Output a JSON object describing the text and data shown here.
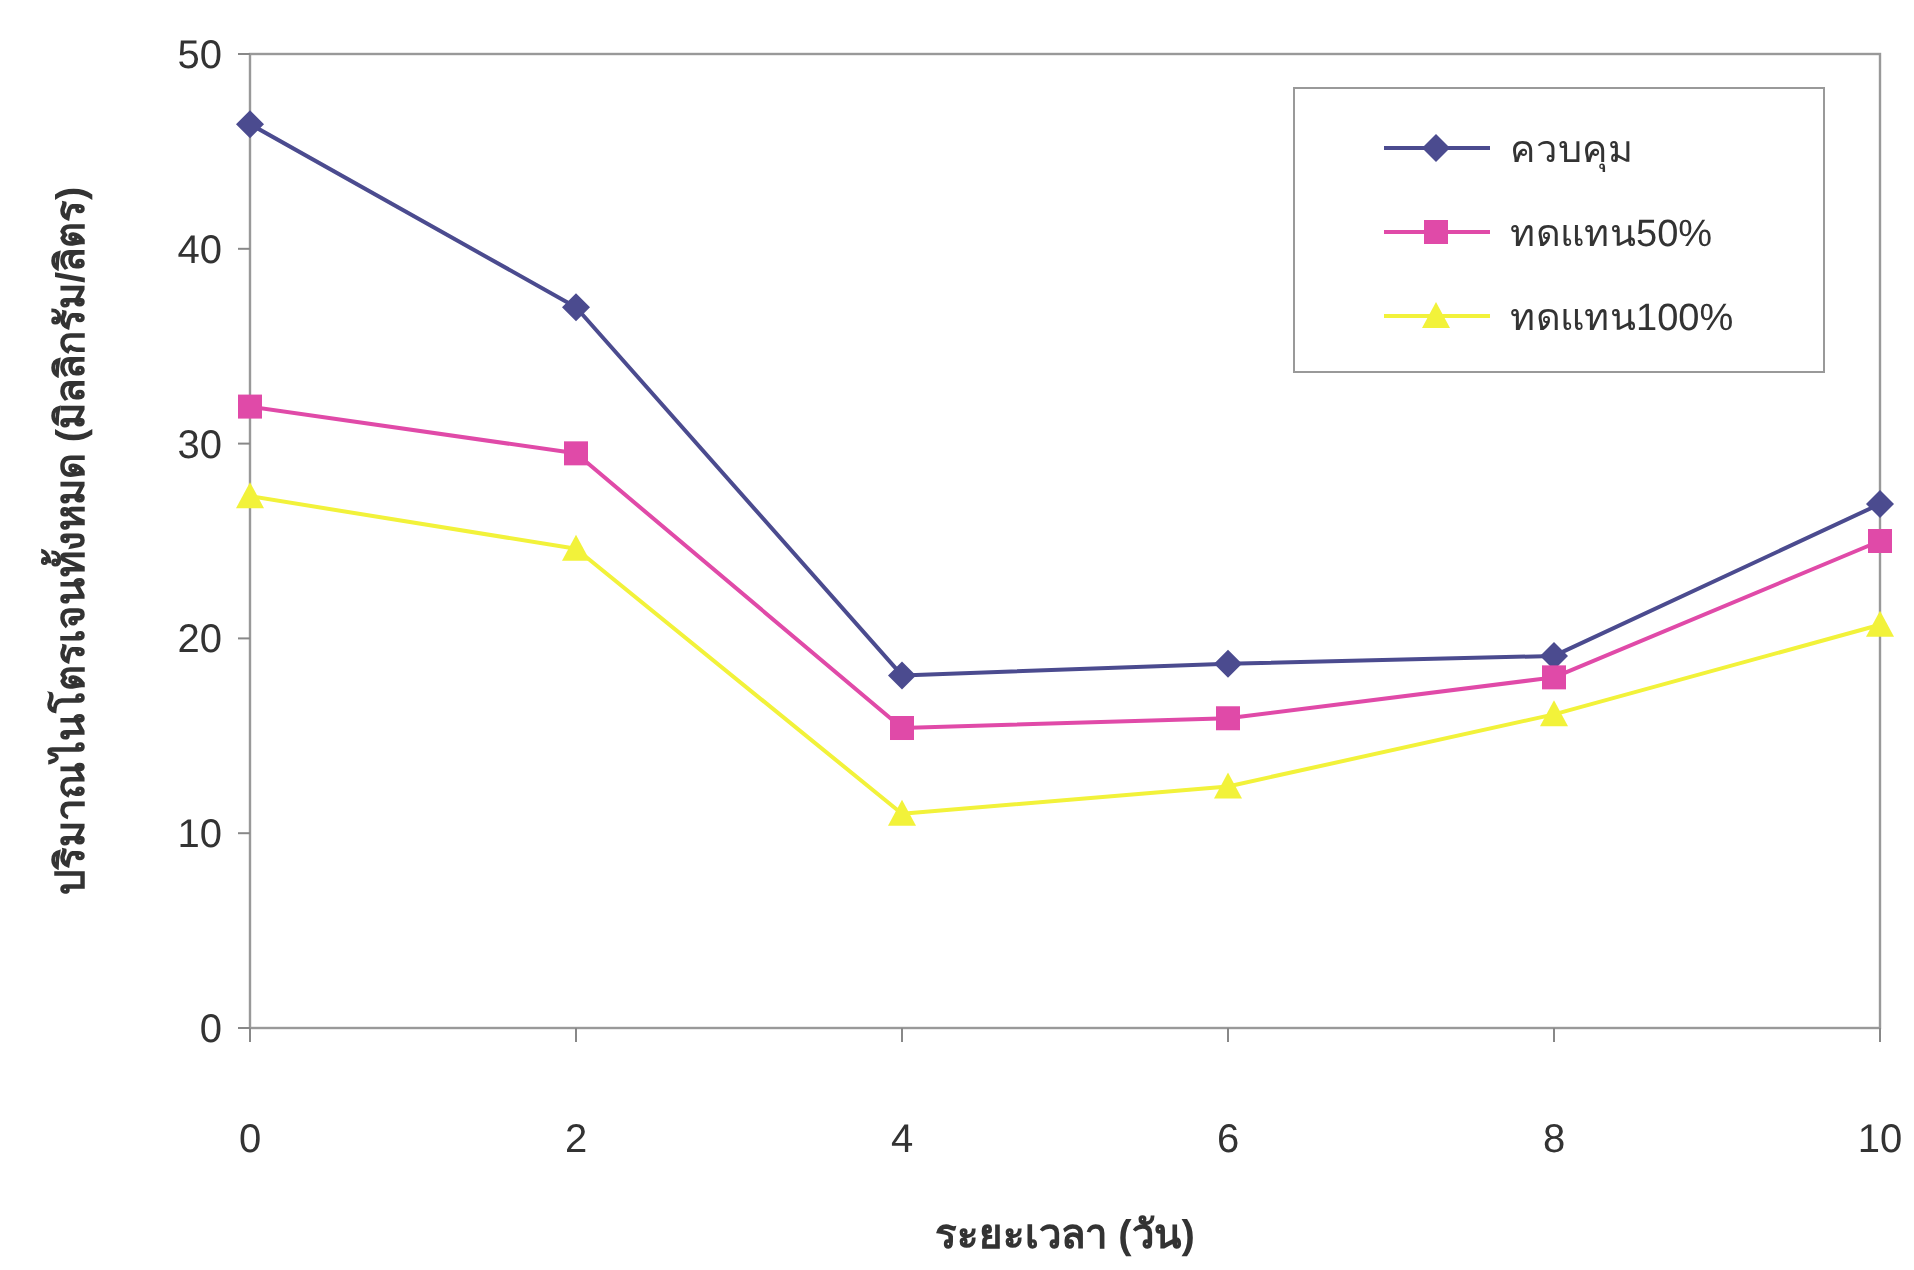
{
  "chart_data": {
    "type": "line",
    "xlabel": "ระยะเวลา (วัน)",
    "ylabel": "ปริมาณไนโตรเจนทั้งหมด (มิลลิกรัม/ลิตร)",
    "x": [
      0,
      2,
      4,
      6,
      8,
      10
    ],
    "series": [
      {
        "name": "ควบคุม",
        "color": "#4b4b8f",
        "marker": "diamond",
        "values": [
          46.4,
          37.0,
          18.1,
          18.7,
          19.1,
          26.9
        ]
      },
      {
        "name": "ทดแทน50%",
        "color": "#e04aa8",
        "marker": "square",
        "values": [
          31.9,
          29.5,
          15.4,
          15.9,
          18.0,
          25.0
        ]
      },
      {
        "name": "ทดแทน100%",
        "color": "#f2f23a",
        "marker": "triangle",
        "values": [
          27.3,
          24.6,
          11.0,
          12.4,
          16.1,
          20.7
        ]
      }
    ],
    "xlim": [
      0,
      10
    ],
    "xticks": [
      0,
      2,
      4,
      6,
      8,
      10
    ],
    "ylim": [
      0,
      50
    ],
    "yticks": [
      0,
      10,
      20,
      30,
      40,
      50
    ],
    "legend": "top right",
    "grid": false
  }
}
